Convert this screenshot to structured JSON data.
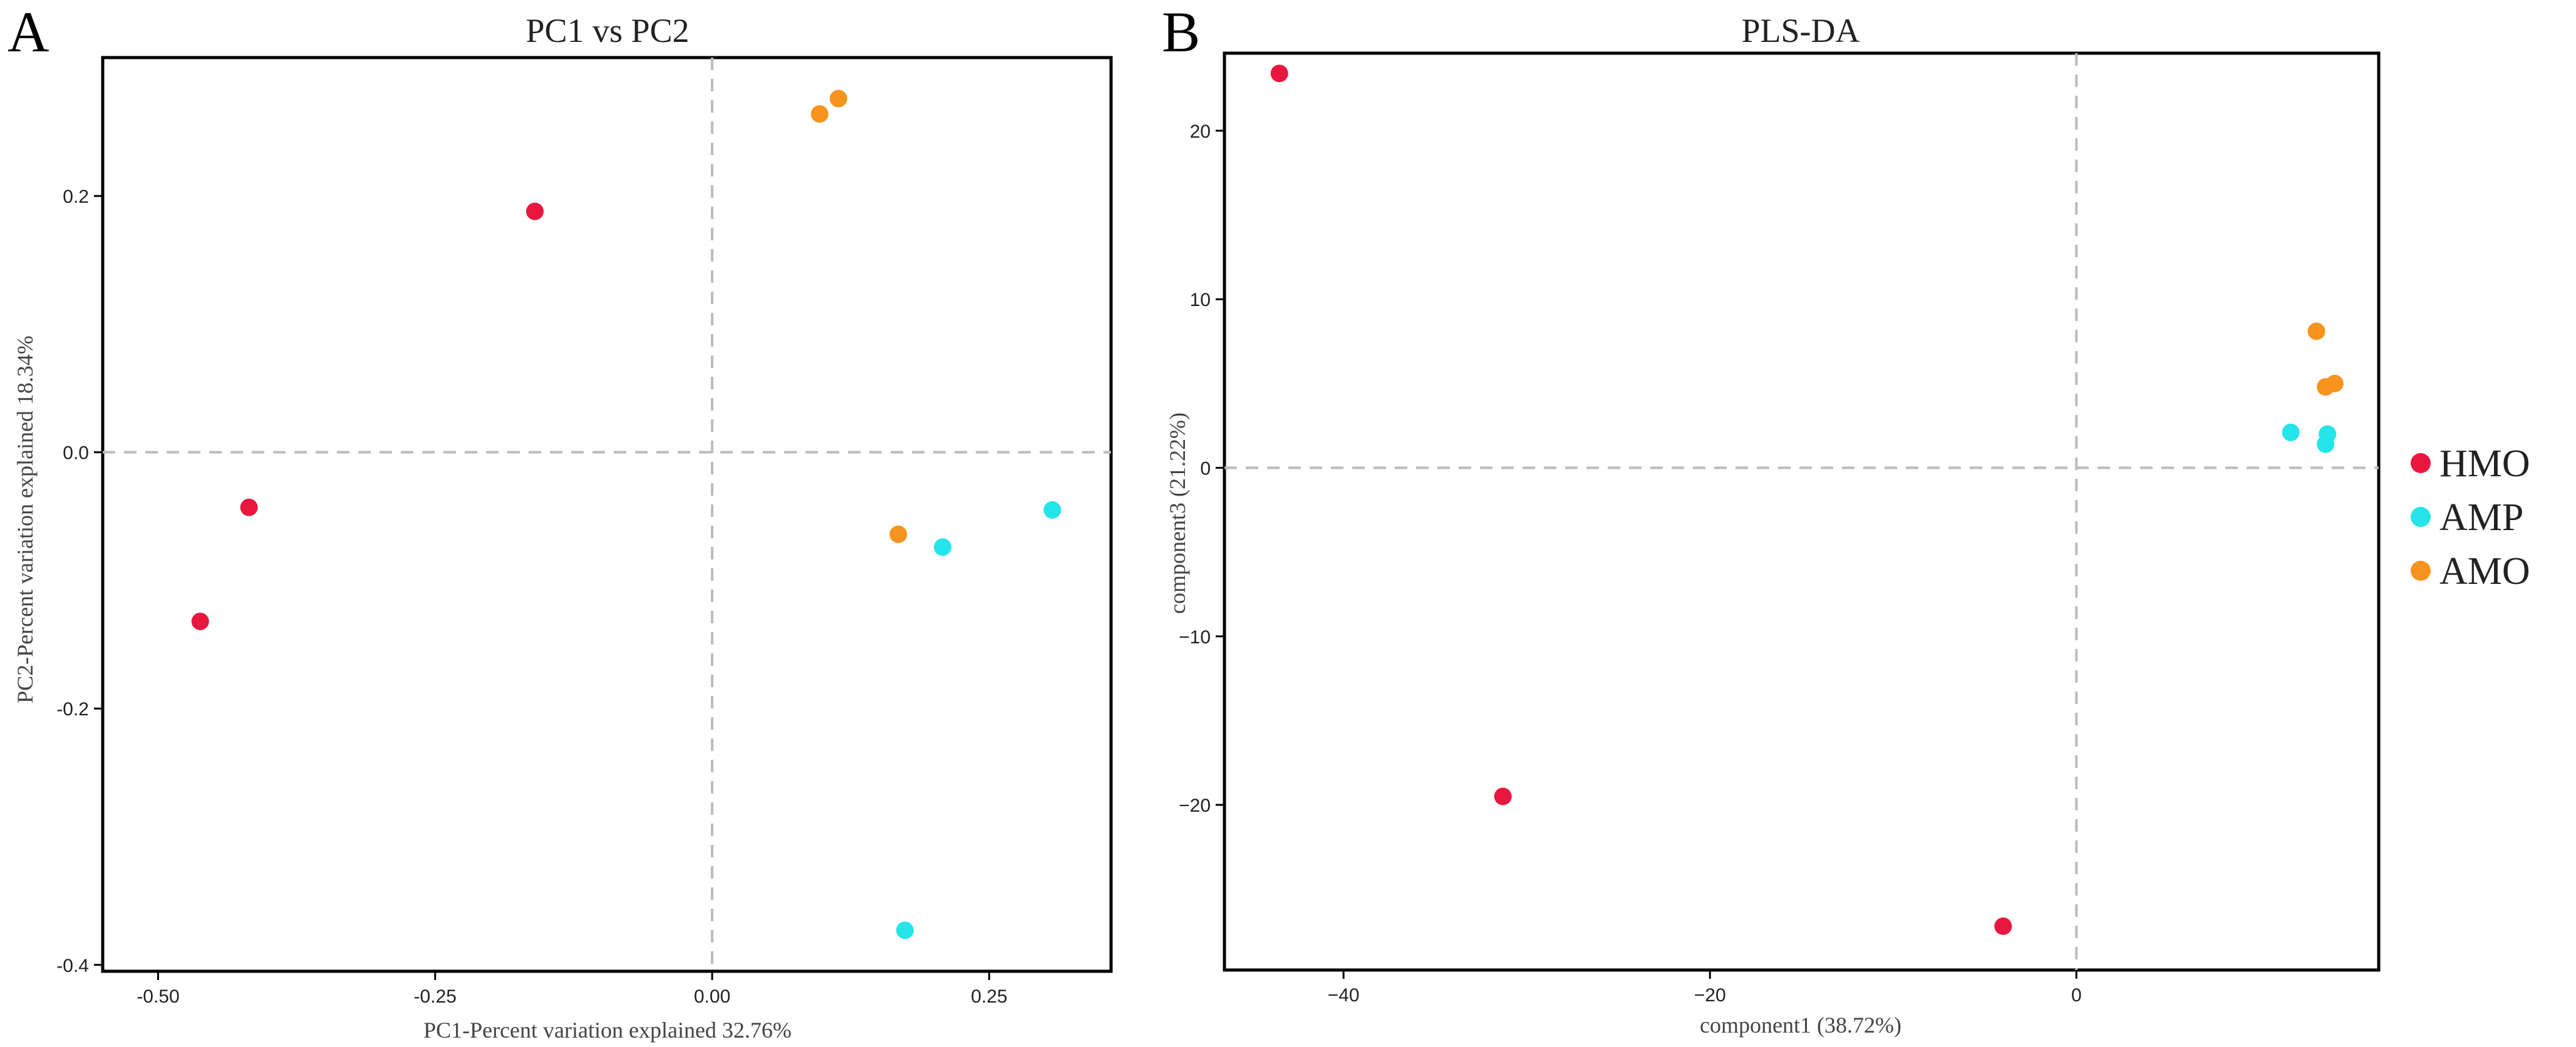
{
  "chart_data": [
    {
      "panel": "A",
      "type": "scatter",
      "title": "PC1 vs PC2",
      "xlabel": "PC1-Percent variation explained 32.76%",
      "ylabel": "PC2-Percent variation explained 18.34%",
      "xlim": [
        -0.55,
        0.36
      ],
      "ylim": [
        -0.405,
        0.308
      ],
      "xticks": [
        -0.5,
        -0.25,
        0.0,
        0.25
      ],
      "xtick_labels": [
        "-0.50",
        "-0.25",
        "0.00",
        "0.25"
      ],
      "yticks": [
        0.2,
        0.0,
        -0.2,
        -0.4
      ],
      "ytick_labels": [
        "0.2",
        "0.0",
        "-0.2",
        "-0.4"
      ],
      "reference_lines": {
        "x": 0,
        "y": 0
      },
      "series": [
        {
          "name": "HMO",
          "points": [
            [
              -0.16,
              0.188
            ],
            [
              -0.418,
              -0.043
            ],
            [
              -0.462,
              -0.132
            ]
          ]
        },
        {
          "name": "AMP",
          "points": [
            [
              0.208,
              -0.074
            ],
            [
              0.307,
              -0.045
            ],
            [
              0.174,
              -0.373
            ]
          ]
        },
        {
          "name": "AMO",
          "points": [
            [
              0.097,
              0.264
            ],
            [
              0.114,
              0.276
            ],
            [
              0.168,
              -0.064
            ]
          ]
        }
      ]
    },
    {
      "panel": "B",
      "type": "scatter",
      "title": "PLS-DA",
      "xlabel": "component1 (38.72%)",
      "ylabel": "component3 (21.22%)",
      "xlim": [
        -46.5,
        16.5
      ],
      "ylim": [
        -29.8,
        24.6
      ],
      "xticks": [
        -40,
        -20,
        0
      ],
      "xtick_labels": [
        "−40",
        "−20",
        "0"
      ],
      "yticks": [
        20,
        10,
        0,
        -10,
        -20
      ],
      "ytick_labels": [
        "20",
        "10",
        "0",
        "−10",
        "−20"
      ],
      "reference_lines": {
        "x": 0,
        "y": 0
      },
      "series": [
        {
          "name": "HMO",
          "points": [
            [
              -43.5,
              23.4
            ],
            [
              -31.3,
              -19.5
            ],
            [
              -4.0,
              -27.2
            ]
          ]
        },
        {
          "name": "AMP",
          "points": [
            [
              11.7,
              2.1
            ],
            [
              13.7,
              2.0
            ],
            [
              13.6,
              1.4
            ]
          ]
        },
        {
          "name": "AMO",
          "points": [
            [
              13.1,
              8.1
            ],
            [
              13.6,
              4.8
            ],
            [
              14.1,
              5.0
            ]
          ]
        }
      ]
    }
  ],
  "legend": [
    {
      "label": "HMO",
      "color": "#e8173f"
    },
    {
      "label": "AMP",
      "color": "#25e4ea"
    },
    {
      "label": "AMO",
      "color": "#f7931e"
    }
  ]
}
